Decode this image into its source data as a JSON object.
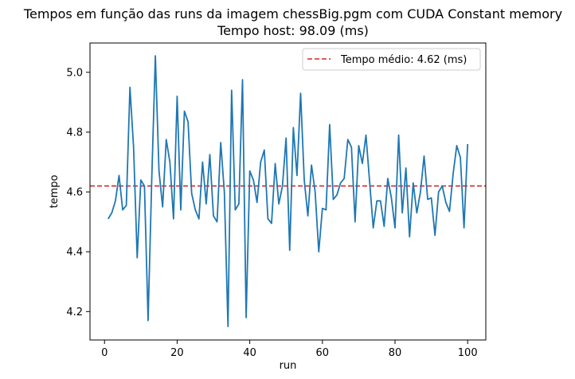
{
  "chart_data": {
    "type": "line",
    "title": "Tempos em função das runs da imagem chessBig.pgm com CUDA Constant memory",
    "subtitle": "Tempo host: 98.09 (ms)",
    "xlabel": "run",
    "ylabel": "tempo",
    "xlim": [
      -4.0,
      105.0
    ],
    "ylim": [
      4.105,
      5.098
    ],
    "xticks": [
      0,
      20,
      40,
      60,
      80,
      100
    ],
    "xtick_labels": [
      "0",
      "20",
      "40",
      "60",
      "80",
      "100"
    ],
    "yticks": [
      4.2,
      4.4,
      4.6,
      4.8,
      5.0
    ],
    "ytick_labels": [
      "4.2",
      "4.4",
      "4.6",
      "4.8",
      "5.0"
    ],
    "grid": false,
    "legend_position": "top-right",
    "series": [
      {
        "color": "#1f77b4",
        "x": [
          1,
          2,
          3,
          4,
          5,
          6,
          7,
          8,
          9,
          10,
          11,
          12,
          13,
          14,
          15,
          16,
          17,
          18,
          19,
          20,
          21,
          22,
          23,
          24,
          25,
          26,
          27,
          28,
          29,
          30,
          31,
          32,
          33,
          34,
          35,
          36,
          37,
          38,
          39,
          40,
          41,
          42,
          43,
          44,
          45,
          46,
          47,
          48,
          49,
          50,
          51,
          52,
          53,
          54,
          55,
          56,
          57,
          58,
          59,
          60,
          61,
          62,
          63,
          64,
          65,
          66,
          67,
          68,
          69,
          70,
          71,
          72,
          73,
          74,
          75,
          76,
          77,
          78,
          79,
          80,
          81,
          82,
          83,
          84,
          85,
          86,
          87,
          88,
          89,
          90,
          91,
          92,
          93,
          94,
          95,
          96,
          97,
          98,
          99,
          100
        ],
        "y": [
          4.51,
          4.53,
          4.57,
          4.655,
          4.54,
          4.555,
          4.95,
          4.75,
          4.38,
          4.64,
          4.62,
          4.17,
          4.64,
          5.055,
          4.67,
          4.55,
          4.775,
          4.7,
          4.51,
          4.92,
          4.54,
          4.87,
          4.835,
          4.595,
          4.54,
          4.51,
          4.7,
          4.56,
          4.725,
          4.52,
          4.5,
          4.765,
          4.6,
          4.15,
          4.94,
          4.54,
          4.56,
          4.975,
          4.18,
          4.67,
          4.64,
          4.565,
          4.7,
          4.74,
          4.51,
          4.495,
          4.695,
          4.56,
          4.62,
          4.78,
          4.405,
          4.815,
          4.655,
          4.93,
          4.64,
          4.52,
          4.69,
          4.6,
          4.4,
          4.545,
          4.54,
          4.825,
          4.575,
          4.59,
          4.63,
          4.645,
          4.775,
          4.75,
          4.5,
          4.755,
          4.695,
          4.79,
          4.635,
          4.48,
          4.57,
          4.57,
          4.485,
          4.645,
          4.58,
          4.48,
          4.79,
          4.53,
          4.68,
          4.45,
          4.63,
          4.53,
          4.6,
          4.72,
          4.575,
          4.58,
          4.455,
          4.6,
          4.62,
          4.565,
          4.535,
          4.66,
          4.755,
          4.715,
          4.48,
          4.76
        ]
      },
      {
        "name": "Tempo médio: 4.62 (ms)",
        "color": "#d62728",
        "style": "dashed",
        "y": 4.62
      }
    ]
  }
}
